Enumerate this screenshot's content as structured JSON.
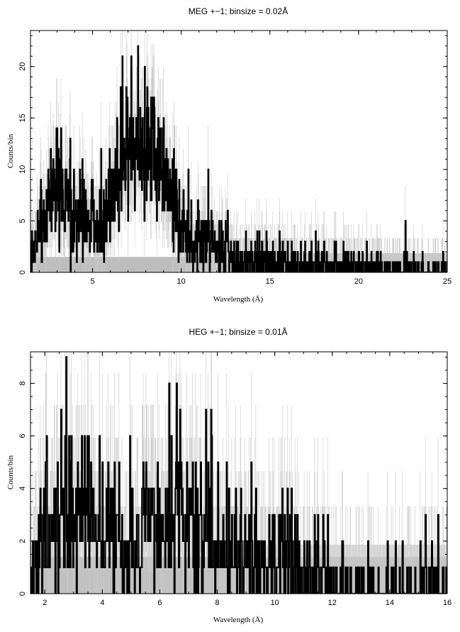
{
  "chart_data": [
    {
      "type": "line",
      "title": "MEG +−1; binsize = 0.02Å",
      "xlabel": "Wavelength (Å)",
      "ylabel": "Counts/bin",
      "xlim": [
        1.5,
        25
      ],
      "ylim": [
        0,
        23.5
      ],
      "xticks": [
        5,
        10,
        15,
        20,
        25
      ],
      "xtick_labels": [
        "5",
        "10",
        "15",
        "20",
        "25"
      ],
      "yticks": [
        0,
        5,
        10,
        15,
        20
      ],
      "ytick_labels": [
        "0",
        "5",
        "10",
        "15",
        "20"
      ],
      "series": [
        {
          "style": "stepped-black",
          "x": [
            1.5,
            2.0,
            2.5,
            3.0,
            3.5,
            4.0,
            4.5,
            5.0,
            5.5,
            6.0,
            6.5,
            7.0,
            7.5,
            8.0,
            8.5,
            9.0,
            9.5,
            10.0,
            10.5,
            11.0,
            11.5,
            12.0,
            12.5,
            13.0,
            13.5,
            14.0,
            15.0,
            16.0,
            17.0,
            18.0,
            19.0,
            20.0,
            21.0,
            22.0,
            23.0,
            24.0,
            25.0
          ],
          "values": [
            1,
            4,
            7,
            9,
            8,
            6,
            6,
            5,
            4,
            7,
            11,
            12,
            13,
            12,
            11,
            9,
            7,
            4,
            4,
            3,
            3,
            2,
            2,
            1.5,
            1.5,
            1,
            1,
            0.8,
            0.8,
            0.6,
            0.6,
            0.5,
            0.5,
            0.4,
            0.4,
            0.3,
            0.3
          ]
        },
        {
          "style": "model-band-gray",
          "x": [
            1.5,
            25
          ],
          "values": [
            1.5,
            1.5
          ]
        }
      ],
      "grid": false
    },
    {
      "type": "line",
      "title": "HEG +−1; binsize = 0.01Å",
      "xlabel": "Wavelength (Å)",
      "ylabel": "Counts/bin",
      "xlim": [
        1.5,
        16
      ],
      "ylim": [
        0,
        9.2
      ],
      "xticks": [
        2,
        4,
        6,
        8,
        10,
        12,
        14,
        16
      ],
      "xtick_labels": [
        "2",
        "4",
        "6",
        "8",
        "10",
        "12",
        "14",
        "16"
      ],
      "yticks": [
        0,
        2,
        4,
        6,
        8
      ],
      "ytick_labels": [
        "0",
        "2",
        "4",
        "6",
        "8"
      ],
      "series": [
        {
          "style": "stepped-black",
          "x": [
            1.5,
            2.0,
            2.5,
            3.0,
            3.5,
            4.0,
            4.5,
            5.0,
            5.5,
            6.0,
            6.5,
            7.0,
            7.5,
            8.0,
            8.5,
            9.0,
            9.5,
            10.0,
            10.5,
            11.0,
            11.5,
            12.0,
            12.5,
            13.0,
            13.5,
            14.0,
            15.0,
            16.0
          ],
          "values": [
            1,
            2.5,
            3,
            3.2,
            3,
            2.5,
            2.5,
            2,
            2,
            2.5,
            3,
            3,
            2.5,
            2.5,
            2,
            1.8,
            1.3,
            1,
            1,
            0.8,
            0.7,
            0.6,
            0.5,
            0.4,
            0.4,
            0.3,
            0.3,
            0.3
          ]
        },
        {
          "style": "model-band-gray",
          "x": [
            1.5,
            16
          ],
          "values": [
            1.4,
            1.4
          ]
        }
      ],
      "grid": false
    }
  ]
}
